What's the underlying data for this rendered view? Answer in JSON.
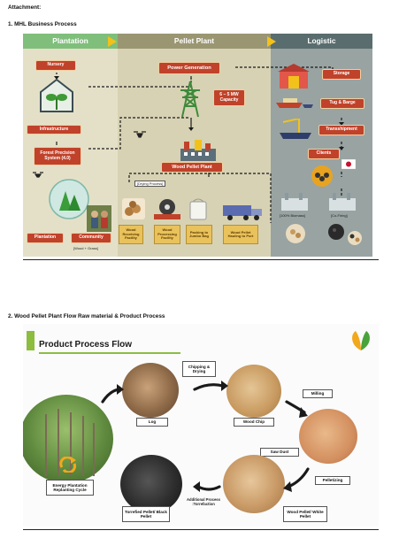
{
  "headings": {
    "attachment": "Attachment:",
    "section1": "1.  MHL Business Process",
    "section2": "2.  Wood Pellet Plant Flow Raw material & Product Process"
  },
  "business_process": {
    "zones": {
      "plantation": "Plantation",
      "pellet_plant": "Pellet Plant",
      "logistic": "Logistic"
    },
    "nodes": {
      "nursery": "Nursery",
      "infrastructure": "Infrastructure",
      "forest_precision": "Forest Precision System (4.0)",
      "plantation": "Plantation",
      "community": "Community",
      "wood_grass": "[Wood + Grass]",
      "power_generation": "Power Generation",
      "capacity": "6 – 5 MW Capacity",
      "wood_pellet_plant": "Wood Pellet Plant",
      "drying_process": "[Drying Process]",
      "wood_receiving": "Wood Receiving Facility",
      "wood_processing": "Wood Processing Facility",
      "packing": "Packing to Jumbo Bag",
      "hauling": "Wood Pellet Hauling to Port",
      "storage": "Storage",
      "tug_barge": "Tug & Barge",
      "transshipment": "Transshipment",
      "clients": "Clients",
      "biomass": "[100% Biomass]",
      "cofiring": "[Co-Firing]"
    },
    "colors": {
      "node_fill": "#c0422a",
      "plantation_zone": "#e4e0c8",
      "pellet_zone": "#d7d2b4",
      "logistic_zone": "#99a3a2",
      "arrow_yellow": "#f2c21a"
    }
  },
  "product_flow": {
    "title": "Product Process Flow",
    "steps": {
      "log": "Log",
      "chipping_drying": "Chipping & Drying",
      "wood_chip": "Wood Chip",
      "milling": "Milling",
      "saw_dust": "Saw Dust",
      "pelletizing": "Pelletizing",
      "white_pellet": "Wood Pellet/ White Pellet",
      "torrefaction": "Additional Process :Torrefaction",
      "black_pellet": "Torrefied Pellet/ Black Pellet",
      "energy_plantation": "Energy Plantation Replanting Cycle"
    },
    "colors": {
      "accent_green": "#8cbd3f",
      "arrow": "#1a1a1a"
    }
  }
}
